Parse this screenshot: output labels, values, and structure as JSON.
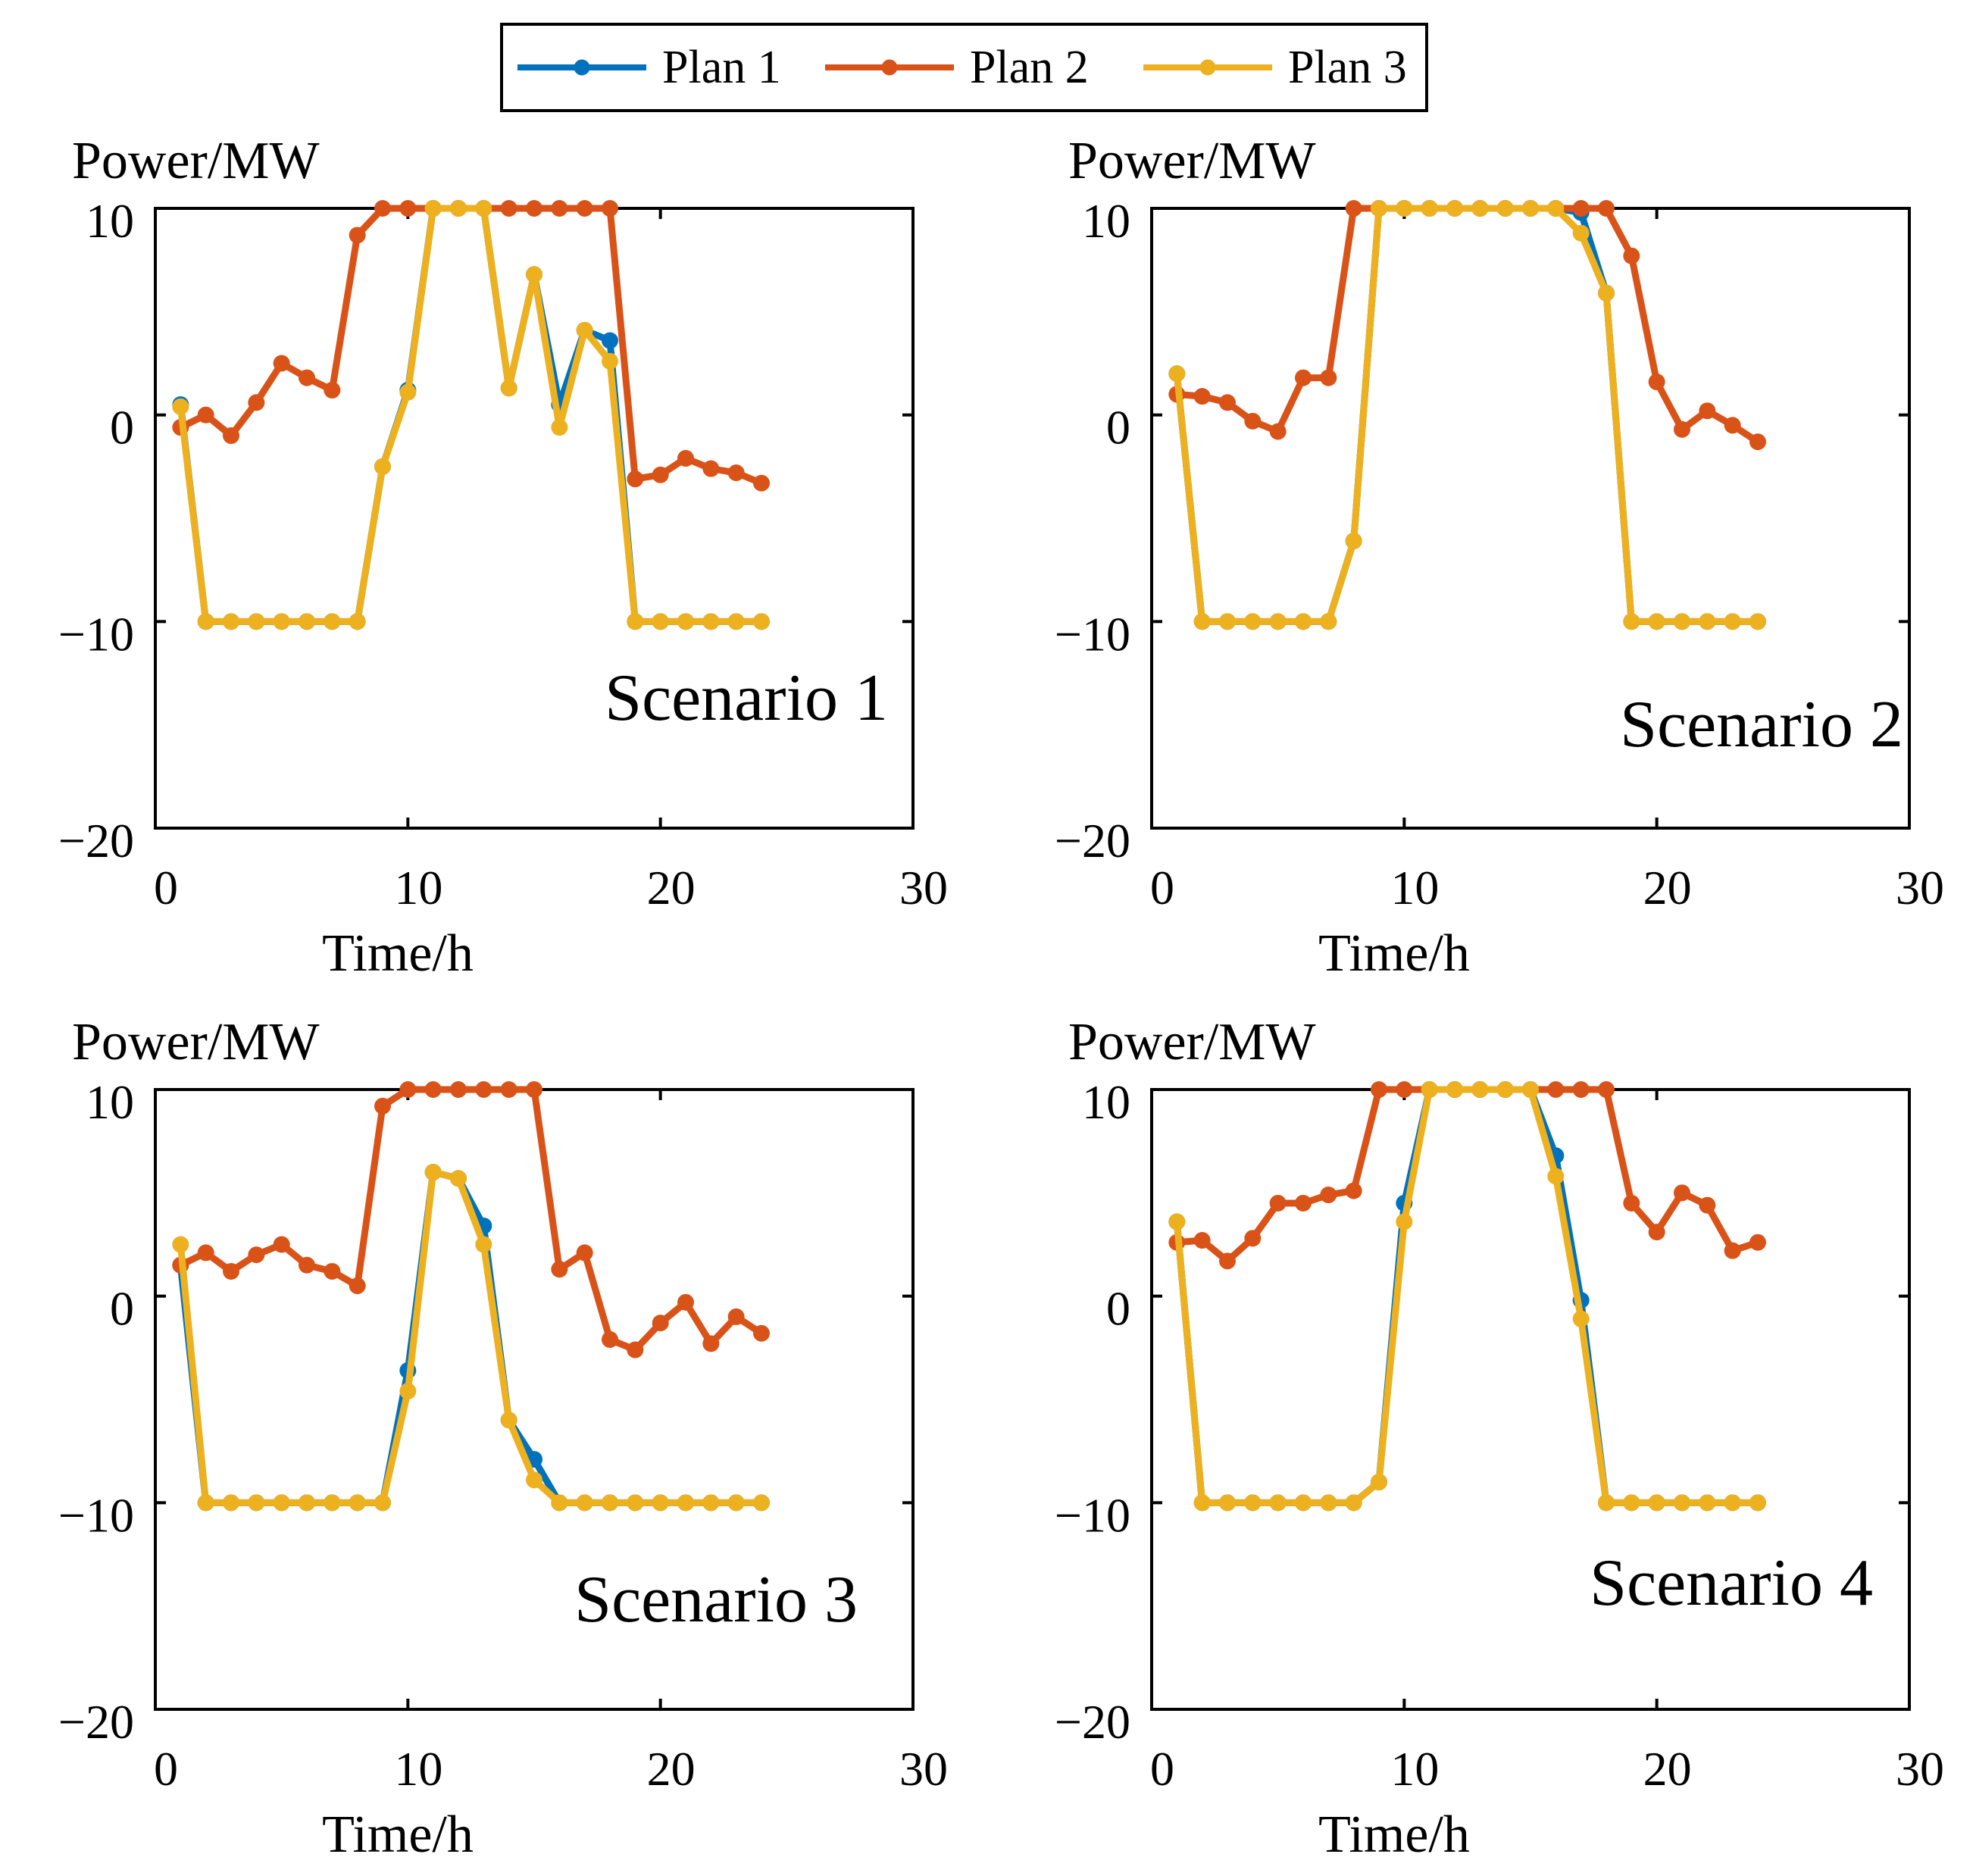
{
  "legend": {
    "items": [
      {
        "label": "Plan 1",
        "color": "#0072BD"
      },
      {
        "label": "Plan 2",
        "color": "#D95319"
      },
      {
        "label": "Plan 3",
        "color": "#EDB120"
      }
    ]
  },
  "chart_data": [
    {
      "type": "line",
      "title": "Scenario 1",
      "xlabel": "Time/h",
      "ylabel": "Power/MW",
      "xlim": [
        0,
        30
      ],
      "ylim": [
        -20,
        10
      ],
      "xticks": [
        0,
        10,
        20,
        30
      ],
      "yticks": [
        -20,
        -10,
        0,
        10
      ],
      "x": [
        1,
        2,
        3,
        4,
        5,
        6,
        7,
        8,
        9,
        10,
        11,
        12,
        13,
        14,
        15,
        16,
        17,
        18,
        19,
        20,
        21,
        22,
        23,
        24
      ],
      "series": [
        {
          "name": "Plan 1",
          "values": [
            0.5,
            -10,
            -10,
            -10,
            -10,
            -10,
            -10,
            -10,
            -2.5,
            1.2,
            10,
            10,
            10,
            1.3,
            6.8,
            0.5,
            4.1,
            3.6,
            -10,
            -10,
            -10,
            -10,
            -10,
            -10
          ]
        },
        {
          "name": "Plan 2",
          "values": [
            -0.6,
            0,
            -1,
            0.6,
            2.5,
            1.8,
            1.2,
            8.7,
            10,
            10,
            10,
            10,
            10,
            10,
            10,
            10,
            10,
            10,
            -3.1,
            -2.9,
            -2.1,
            -2.6,
            -2.8,
            -3.3
          ]
        },
        {
          "name": "Plan 3",
          "values": [
            0.4,
            -10,
            -10,
            -10,
            -10,
            -10,
            -10,
            -10,
            -2.5,
            1.1,
            10,
            10,
            10,
            1.3,
            6.8,
            -0.6,
            4.1,
            2.6,
            -10,
            -10,
            -10,
            -10,
            -10,
            -10
          ]
        }
      ]
    },
    {
      "type": "line",
      "title": "Scenario 2",
      "xlabel": "Time/h",
      "ylabel": "Power/MW",
      "xlim": [
        0,
        30
      ],
      "ylim": [
        -20,
        10
      ],
      "xticks": [
        0,
        10,
        20,
        30
      ],
      "yticks": [
        -20,
        -10,
        0,
        10
      ],
      "x": [
        1,
        2,
        3,
        4,
        5,
        6,
        7,
        8,
        9,
        10,
        11,
        12,
        13,
        14,
        15,
        16,
        17,
        18,
        19,
        20,
        21,
        22,
        23,
        24
      ],
      "series": [
        {
          "name": "Plan 1",
          "values": [
            2,
            -10,
            -10,
            -10,
            -10,
            -10,
            -10,
            -6.1,
            10,
            10,
            10,
            10,
            10,
            10,
            10,
            10,
            9.8,
            5.9,
            -10,
            -10,
            -10,
            -10,
            -10,
            -10
          ]
        },
        {
          "name": "Plan 2",
          "values": [
            1,
            0.9,
            0.6,
            -0.3,
            -0.8,
            1.8,
            1.8,
            10,
            10,
            10,
            10,
            10,
            10,
            10,
            10,
            10,
            10,
            10,
            7.7,
            1.6,
            -0.7,
            0.2,
            -0.5,
            -1.3
          ]
        },
        {
          "name": "Plan 3",
          "values": [
            2,
            -10,
            -10,
            -10,
            -10,
            -10,
            -10,
            -6.1,
            10,
            10,
            10,
            10,
            10,
            10,
            10,
            10,
            8.8,
            5.9,
            -10,
            -10,
            -10,
            -10,
            -10,
            -10
          ]
        }
      ]
    },
    {
      "type": "line",
      "title": "Scenario 3",
      "xlabel": "Time/h",
      "ylabel": "Power/MW",
      "xlim": [
        0,
        30
      ],
      "ylim": [
        -20,
        10
      ],
      "xticks": [
        0,
        10,
        20,
        30
      ],
      "yticks": [
        -20,
        -10,
        0,
        10
      ],
      "x": [
        1,
        2,
        3,
        4,
        5,
        6,
        7,
        8,
        9,
        10,
        11,
        12,
        13,
        14,
        15,
        16,
        17,
        18,
        19,
        20,
        21,
        22,
        23,
        24
      ],
      "series": [
        {
          "name": "Plan 1",
          "values": [
            1.5,
            -10,
            -10,
            -10,
            -10,
            -10,
            -10,
            -10,
            -10,
            -3.6,
            6,
            5.7,
            3.4,
            -6,
            -7.9,
            -10,
            -10,
            -10,
            -10,
            -10,
            -10,
            -10,
            -10,
            -10
          ]
        },
        {
          "name": "Plan 2",
          "values": [
            1.5,
            2.1,
            1.2,
            2,
            2.5,
            1.5,
            1.2,
            0.5,
            9.2,
            10,
            10,
            10,
            10,
            10,
            10,
            1.3,
            2.1,
            -2.1,
            -2.6,
            -1.3,
            -0.3,
            -2.3,
            -1,
            -1.8
          ]
        },
        {
          "name": "Plan 3",
          "values": [
            2.5,
            -10,
            -10,
            -10,
            -10,
            -10,
            -10,
            -10,
            -10,
            -4.6,
            6,
            5.7,
            2.5,
            -6,
            -8.9,
            -10,
            -10,
            -10,
            -10,
            -10,
            -10,
            -10,
            -10,
            -10
          ]
        }
      ]
    },
    {
      "type": "line",
      "title": "Scenario 4",
      "xlabel": "Time/h",
      "ylabel": "Power/MW",
      "xlim": [
        0,
        30
      ],
      "ylim": [
        -20,
        10
      ],
      "xticks": [
        0,
        10,
        20,
        30
      ],
      "yticks": [
        -20,
        -10,
        0,
        10
      ],
      "x": [
        1,
        2,
        3,
        4,
        5,
        6,
        7,
        8,
        9,
        10,
        11,
        12,
        13,
        14,
        15,
        16,
        17,
        18,
        19,
        20,
        21,
        22,
        23,
        24
      ],
      "series": [
        {
          "name": "Plan 1",
          "values": [
            3.6,
            -10,
            -10,
            -10,
            -10,
            -10,
            -10,
            -10,
            -9,
            4.5,
            10,
            10,
            10,
            10,
            10,
            6.8,
            -0.2,
            -10,
            -10,
            -10,
            -10,
            -10,
            -10,
            -10
          ]
        },
        {
          "name": "Plan 2",
          "values": [
            2.6,
            2.7,
            1.7,
            2.8,
            4.5,
            4.5,
            4.9,
            5.1,
            10,
            10,
            10,
            10,
            10,
            10,
            10,
            10,
            10,
            10,
            4.5,
            3.1,
            5,
            4.4,
            2.2,
            2.6
          ]
        },
        {
          "name": "Plan 3",
          "values": [
            3.6,
            -10,
            -10,
            -10,
            -10,
            -10,
            -10,
            -10,
            -9,
            3.6,
            10,
            10,
            10,
            10,
            10,
            5.8,
            -1.1,
            -10,
            -10,
            -10,
            -10,
            -10,
            -10,
            -10
          ]
        }
      ]
    }
  ]
}
